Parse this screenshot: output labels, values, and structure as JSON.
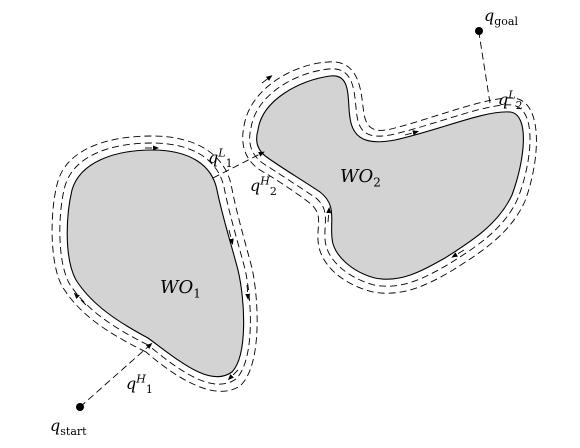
{
  "obstacles": [
    {
      "name": "WO",
      "index": "1"
    },
    {
      "name": "WO",
      "index": "2"
    }
  ],
  "points": {
    "start": {
      "symbol": "q",
      "sub": "start"
    },
    "goal": {
      "symbol": "q",
      "sub": "goal"
    },
    "q1H": {
      "symbol": "q",
      "sub": "1",
      "sup": "H"
    },
    "q1L": {
      "symbol": "q",
      "sub": "1",
      "sup": "L"
    },
    "q2H": {
      "symbol": "q",
      "sub": "2",
      "sup": "H"
    },
    "q2L": {
      "symbol": "q",
      "sub": "2",
      "sup": "L"
    }
  }
}
